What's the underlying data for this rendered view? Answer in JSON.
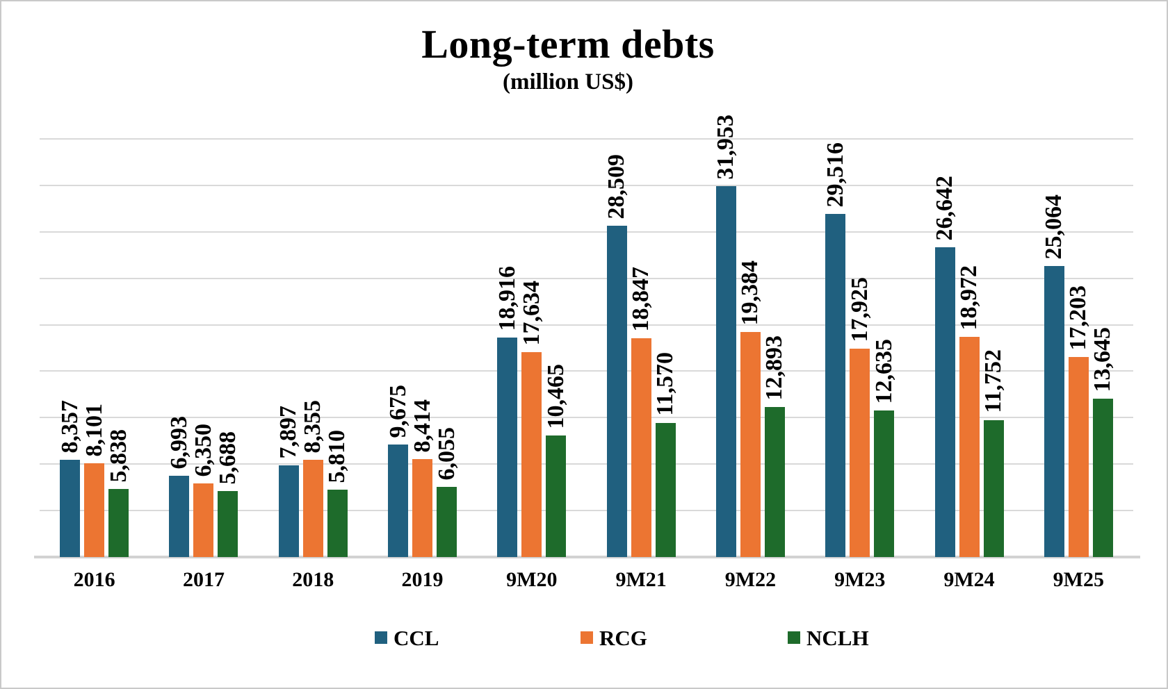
{
  "chart_data": {
    "type": "bar",
    "title": "Long-term debts",
    "subtitle": "(million US$)",
    "categories": [
      "2016",
      "2017",
      "2018",
      "2019",
      "9M20",
      "9M21",
      "9M22",
      "9M23",
      "9M24",
      "9M25"
    ],
    "series": [
      {
        "name": "CCL",
        "color": "#20607f",
        "values": [
          8357,
          6993,
          7897,
          9675,
          18916,
          28509,
          31953,
          29516,
          26642,
          25064
        ]
      },
      {
        "name": "RCG",
        "color": "#ec7532",
        "values": [
          8101,
          6350,
          8355,
          8414,
          17634,
          18847,
          19384,
          17925,
          18972,
          17203
        ]
      },
      {
        "name": "NCLH",
        "color": "#1e6b2b",
        "values": [
          5838,
          5688,
          5810,
          6055,
          10465,
          11570,
          12893,
          12635,
          11752,
          13645
        ]
      }
    ],
    "ylim": [
      0,
      36000
    ],
    "grid_step": 4000,
    "grid": true,
    "y_axis_labels": false,
    "value_labels": "rotated-90-above-bars",
    "legend_position": "bottom",
    "gridline_color": "#d9d9d9"
  }
}
